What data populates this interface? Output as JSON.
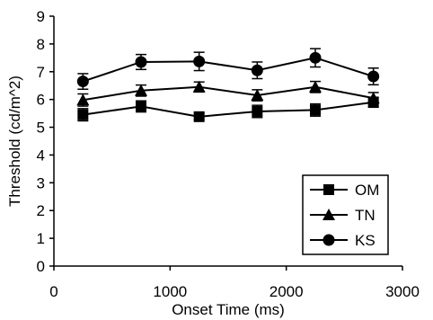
{
  "chart_data": {
    "type": "line",
    "xlabel": "Onset Time (ms)",
    "ylabel": "Threshold (cd/m^2)",
    "xlim": [
      0,
      3000
    ],
    "ylim": [
      0,
      9
    ],
    "x_ticks": [
      0,
      1000,
      2000,
      3000
    ],
    "y_ticks": [
      0,
      1,
      2,
      3,
      4,
      5,
      6,
      7,
      8,
      9
    ],
    "grid": false,
    "legend_position": "bottom-right",
    "x": [
      250,
      750,
      1250,
      1750,
      2250,
      2750
    ],
    "series": [
      {
        "name": "OM",
        "marker": "square",
        "values": [
          5.45,
          5.75,
          5.38,
          5.57,
          5.62,
          5.9
        ],
        "errors": [
          0.22,
          0.2,
          0.12,
          0.22,
          0.22,
          0.18
        ]
      },
      {
        "name": "TN",
        "marker": "triangle",
        "values": [
          5.98,
          6.32,
          6.45,
          6.15,
          6.45,
          6.05
        ],
        "errors": [
          0.22,
          0.2,
          0.18,
          0.2,
          0.2,
          0.2
        ]
      },
      {
        "name": "KS",
        "marker": "circle",
        "values": [
          6.65,
          7.35,
          7.37,
          7.05,
          7.5,
          6.83
        ],
        "errors": [
          0.28,
          0.27,
          0.33,
          0.3,
          0.33,
          0.3
        ]
      }
    ]
  }
}
